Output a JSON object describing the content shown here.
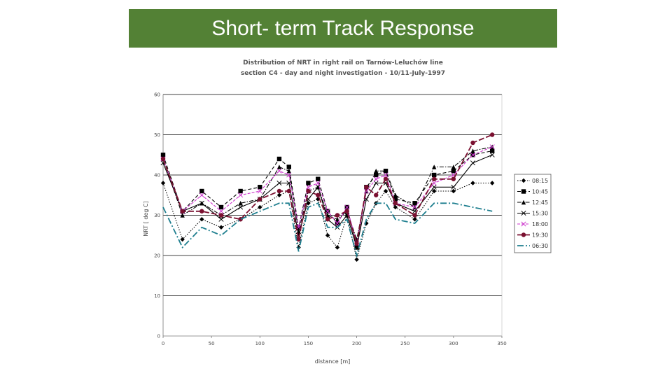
{
  "slide": {
    "title": "Short- term Track Response",
    "title_bg": "#538135"
  },
  "chart_data": {
    "type": "line",
    "title_lines": [
      "Distribution of NRT in right rail on Tarnów-Leluchów line",
      "section C4 - day and night investigation - 10/11-July-1997"
    ],
    "xlabel": "distance [m]",
    "ylabel": "NRT [ deg C]",
    "xlim": [
      0,
      350
    ],
    "ylim": [
      0,
      60
    ],
    "xticks": [
      0,
      50,
      100,
      150,
      200,
      250,
      300,
      350
    ],
    "yticks": [
      0,
      10,
      20,
      30,
      40,
      50,
      60
    ],
    "grid": "horizontal major lines",
    "legend_position": "right",
    "series": [
      {
        "name": "08:15",
        "color": "#000000",
        "dash": "1.5,2",
        "marker": "diamond",
        "x": [
          0,
          20,
          40,
          60,
          80,
          100,
          120,
          130,
          140,
          150,
          160,
          170,
          180,
          190,
          200,
          210,
          220,
          230,
          240,
          260,
          280,
          300,
          320,
          340
        ],
        "y": [
          38,
          24,
          29,
          27,
          29,
          32,
          35,
          36,
          22,
          33,
          34,
          25,
          22,
          30,
          19,
          28,
          33,
          36,
          32,
          29,
          36,
          36,
          38,
          38
        ]
      },
      {
        "name": "10:45",
        "color": "#000000",
        "dash": "5,3",
        "marker": "square",
        "x": [
          0,
          20,
          40,
          60,
          80,
          100,
          120,
          130,
          140,
          150,
          160,
          170,
          180,
          190,
          200,
          210,
          220,
          230,
          240,
          260,
          280,
          300,
          320,
          340
        ],
        "y": [
          45,
          31,
          36,
          32,
          36,
          37,
          44,
          42,
          27,
          38,
          39,
          31,
          28,
          32,
          22,
          37,
          40,
          41,
          34,
          33,
          40,
          41,
          45,
          46
        ]
      },
      {
        "name": "12:45",
        "color": "#000000",
        "dash": "6,2,1.5,2",
        "marker": "triangle",
        "x": [
          0,
          20,
          40,
          60,
          80,
          100,
          120,
          130,
          140,
          150,
          160,
          170,
          180,
          190,
          200,
          210,
          220,
          230,
          240,
          260,
          280,
          300,
          320,
          340
        ],
        "y": [
          44,
          30,
          33,
          30,
          33,
          34,
          42,
          41,
          26,
          36,
          37,
          30,
          29,
          31,
          24,
          36,
          41,
          41,
          35,
          32,
          42,
          42,
          46,
          47
        ]
      },
      {
        "name": "15:30",
        "color": "#000000",
        "dash": "",
        "marker": "x",
        "x": [
          0,
          20,
          40,
          60,
          80,
          100,
          120,
          130,
          140,
          150,
          160,
          170,
          180,
          190,
          200,
          210,
          220,
          230,
          240,
          260,
          280,
          300,
          320,
          340
        ],
        "y": [
          43,
          31,
          33,
          29,
          32,
          34,
          38,
          38,
          25,
          34,
          37,
          29,
          27,
          30,
          22,
          34,
          38,
          38,
          33,
          31,
          37,
          37,
          43,
          45
        ]
      },
      {
        "name": "18:00",
        "color": "#cc33cc",
        "dash": "4,2",
        "marker": "x",
        "x": [
          0,
          20,
          40,
          60,
          80,
          100,
          120,
          130,
          140,
          150,
          160,
          170,
          180,
          190,
          200,
          210,
          220,
          230,
          240,
          260,
          280,
          300,
          320,
          340
        ],
        "y": [
          44,
          31,
          35,
          31,
          35,
          36,
          41,
          40,
          27,
          37,
          38,
          31,
          28,
          32,
          23,
          36,
          39,
          40,
          33,
          32,
          38,
          40,
          45,
          47
        ]
      },
      {
        "name": "19:30",
        "color": "#7a1030",
        "dash": "8,3",
        "marker": "circle",
        "x": [
          0,
          20,
          40,
          60,
          80,
          100,
          120,
          130,
          140,
          150,
          160,
          170,
          180,
          190,
          200,
          210,
          220,
          230,
          240,
          260,
          280,
          300,
          320,
          340
        ],
        "y": [
          44,
          31,
          31,
          30,
          29,
          34,
          36,
          36,
          24,
          36,
          35,
          29,
          30,
          31,
          23,
          37,
          35,
          39,
          33,
          30,
          39,
          39,
          48,
          50
        ]
      },
      {
        "name": "06:30",
        "color": "#1f7f8f",
        "dash": "9,3,2,3",
        "marker": "none",
        "x": [
          0,
          20,
          40,
          60,
          80,
          100,
          120,
          130,
          140,
          150,
          160,
          170,
          180,
          190,
          200,
          210,
          220,
          230,
          240,
          260,
          280,
          300,
          320,
          340
        ],
        "y": [
          32,
          22,
          27,
          25,
          29,
          31,
          33,
          33,
          21,
          32,
          33,
          27,
          27,
          29,
          20,
          29,
          33,
          33,
          29,
          28,
          33,
          33,
          32,
          31
        ]
      }
    ]
  }
}
